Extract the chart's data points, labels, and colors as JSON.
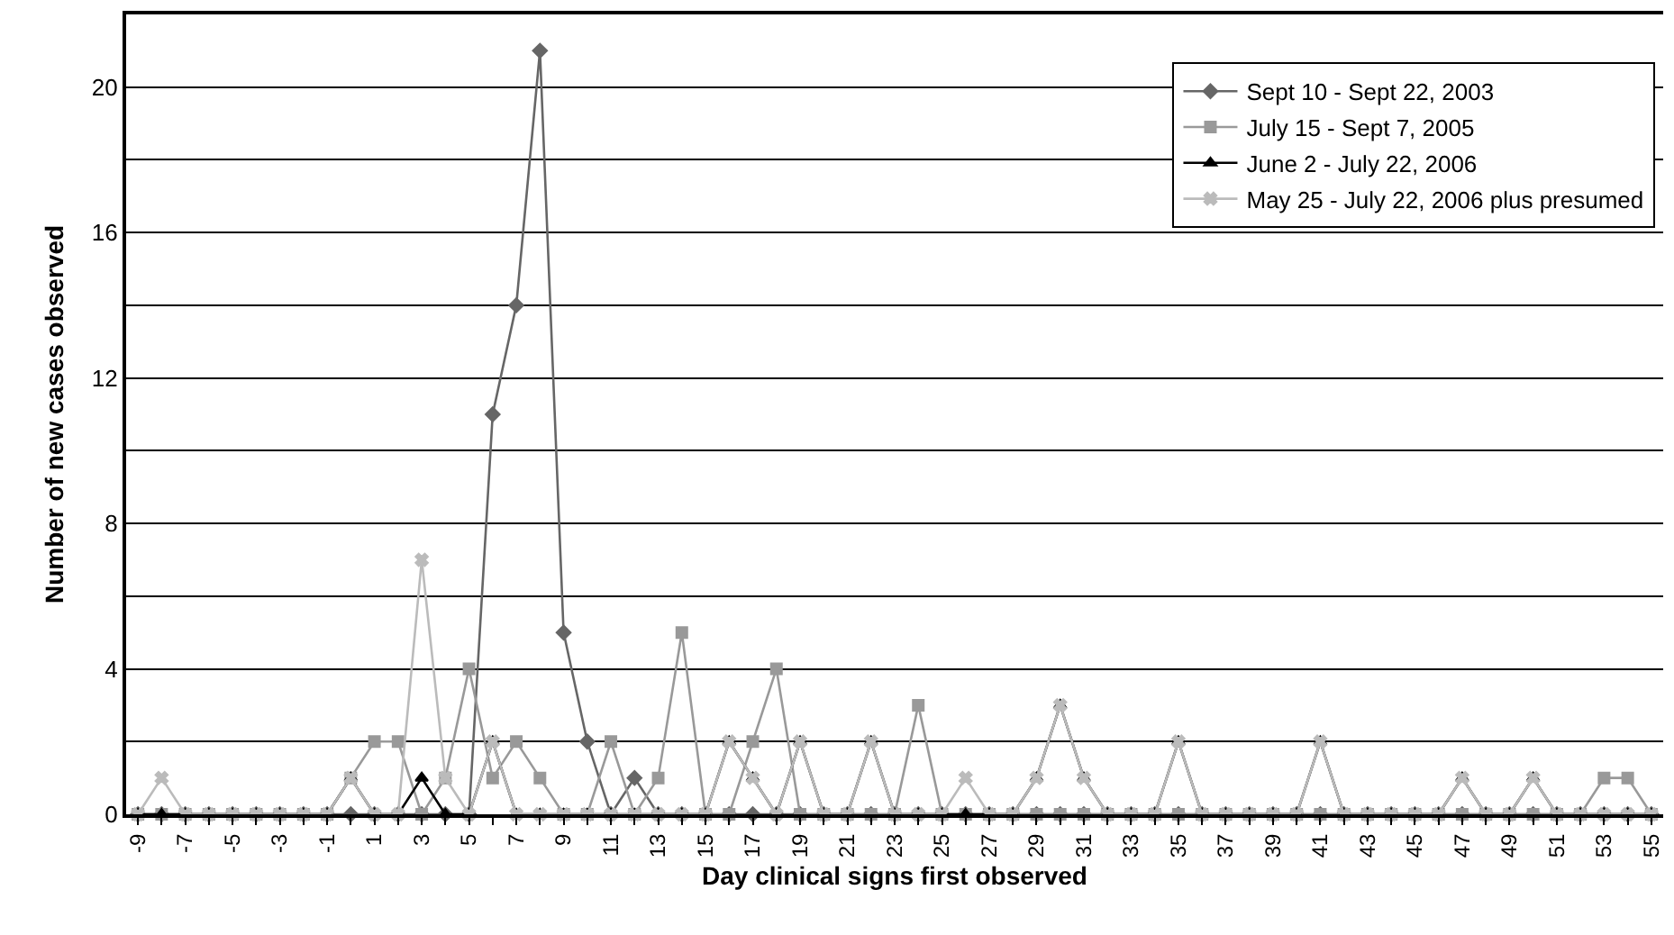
{
  "chart_data": {
    "type": "line",
    "xlabel": "Day clinical signs first observed",
    "ylabel": "Number of new cases observed",
    "x": [
      -9,
      -8,
      -7,
      -6,
      -5,
      -4,
      -3,
      -2,
      -1,
      0,
      1,
      2,
      3,
      4,
      5,
      6,
      7,
      8,
      9,
      10,
      11,
      12,
      13,
      14,
      15,
      16,
      17,
      18,
      19,
      20,
      21,
      22,
      23,
      24,
      25,
      26,
      27,
      28,
      29,
      30,
      31,
      32,
      33,
      34,
      35,
      36,
      37,
      38,
      39,
      40,
      41,
      42,
      43,
      44,
      45,
      46,
      47,
      48,
      49,
      50,
      51,
      52,
      53,
      54,
      55
    ],
    "xlim": [
      -9.5,
      55.5
    ],
    "xticks": [
      -9,
      {
        "value": -8,
        "label": null
      },
      -7,
      {
        "value": -6,
        "label": null
      },
      -5,
      {
        "value": -4,
        "label": null
      },
      -3,
      {
        "value": -2,
        "label": null
      },
      -1,
      {
        "value": 0,
        "label": null
      },
      1,
      {
        "value": 2,
        "label": null
      },
      3,
      {
        "value": 4,
        "label": null
      },
      5,
      {
        "value": 6,
        "label": null
      },
      7,
      {
        "value": 8,
        "label": null
      },
      9,
      {
        "value": 10,
        "label": null
      },
      11,
      {
        "value": 12,
        "label": null
      },
      13,
      {
        "value": 14,
        "label": null
      },
      15,
      {
        "value": 16,
        "label": null
      },
      17,
      {
        "value": 18,
        "label": null
      },
      19,
      {
        "value": 20,
        "label": null
      },
      21,
      {
        "value": 22,
        "label": null
      },
      23,
      {
        "value": 24,
        "label": null
      },
      25,
      {
        "value": 26,
        "label": null
      },
      27,
      {
        "value": 28,
        "label": null
      },
      29,
      {
        "value": 30,
        "label": null
      },
      31,
      {
        "value": 32,
        "label": null
      },
      33,
      {
        "value": 34,
        "label": null
      },
      35,
      {
        "value": 36,
        "label": null
      },
      37,
      {
        "value": 38,
        "label": null
      },
      39,
      {
        "value": 40,
        "label": null
      },
      41,
      {
        "value": 42,
        "label": null
      },
      43,
      {
        "value": 44,
        "label": null
      },
      45,
      {
        "value": 46,
        "label": null
      },
      47,
      {
        "value": 48,
        "label": null
      },
      49,
      {
        "value": 50,
        "label": null
      },
      51,
      {
        "value": 52,
        "label": null
      },
      53,
      {
        "value": 54,
        "label": null
      },
      55
    ],
    "ylim": [
      0,
      22
    ],
    "yticks": [
      0,
      {
        "value": 2,
        "label": null
      },
      4,
      {
        "value": 6,
        "label": null
      },
      8,
      {
        "value": 10,
        "label": null
      },
      12,
      {
        "value": 14,
        "label": null
      },
      16,
      {
        "value": 18,
        "label": null
      },
      20
    ],
    "grid": "y",
    "legend": "top right",
    "line_style": "solid",
    "series": [
      {
        "name": "Sept 10 - Sept 22, 2003",
        "color": "#666666",
        "marker": "diamond",
        "values": [
          0,
          0,
          0,
          0,
          0,
          0,
          0,
          0,
          0,
          0,
          0,
          0,
          0,
          0,
          0,
          11,
          14,
          21,
          5,
          2,
          0,
          1,
          0,
          0,
          0,
          0,
          0,
          0,
          0,
          0,
          0,
          0,
          0,
          0,
          0,
          0,
          0,
          0,
          0,
          0,
          0,
          0,
          0,
          0,
          0,
          0,
          0,
          0,
          0,
          0,
          0,
          0,
          0,
          0,
          0,
          0,
          0,
          0,
          0,
          0,
          0,
          0,
          0,
          0,
          0
        ]
      },
      {
        "name": "July 15 - Sept 7, 2005",
        "color": "#999999",
        "marker": "square",
        "values": [
          0,
          0,
          0,
          0,
          0,
          0,
          0,
          0,
          0,
          1,
          2,
          2,
          0,
          1,
          4,
          1,
          2,
          1,
          0,
          0,
          2,
          0,
          1,
          5,
          0,
          0,
          2,
          4,
          0,
          0,
          0,
          0,
          0,
          3,
          0,
          0,
          0,
          0,
          0,
          0,
          0,
          0,
          0,
          0,
          0,
          0,
          0,
          0,
          0,
          0,
          0,
          0,
          0,
          0,
          0,
          0,
          0,
          0,
          0,
          0,
          0,
          0,
          1,
          1,
          0
        ]
      },
      {
        "name": "June 2 - July 22, 2006",
        "color": "#000000",
        "marker": "triangle",
        "values": [
          0,
          0,
          0,
          0,
          0,
          0,
          0,
          0,
          0,
          1,
          0,
          0,
          1,
          0,
          0,
          2,
          0,
          0,
          0,
          0,
          0,
          0,
          0,
          0,
          0,
          2,
          1,
          0,
          2,
          0,
          0,
          2,
          0,
          0,
          0,
          0,
          0,
          0,
          1,
          3,
          1,
          0,
          0,
          0,
          2,
          0,
          0,
          0,
          0,
          0,
          2,
          0,
          0,
          0,
          0,
          0,
          1,
          0,
          0,
          1,
          0,
          0,
          0,
          0,
          0
        ]
      },
      {
        "name": "May 25 - July 22, 2006 plus presumed",
        "color": "#bbbbbb",
        "marker": "cross",
        "values": [
          0,
          1,
          0,
          0,
          0,
          0,
          0,
          0,
          0,
          1,
          0,
          0,
          7,
          1,
          0,
          2,
          0,
          0,
          0,
          0,
          0,
          0,
          0,
          0,
          0,
          2,
          1,
          0,
          2,
          0,
          0,
          2,
          0,
          0,
          0,
          1,
          0,
          0,
          1,
          3,
          1,
          0,
          0,
          0,
          2,
          0,
          0,
          0,
          0,
          0,
          2,
          0,
          0,
          0,
          0,
          0,
          1,
          0,
          0,
          1,
          0,
          0,
          0,
          0,
          0
        ]
      }
    ]
  }
}
